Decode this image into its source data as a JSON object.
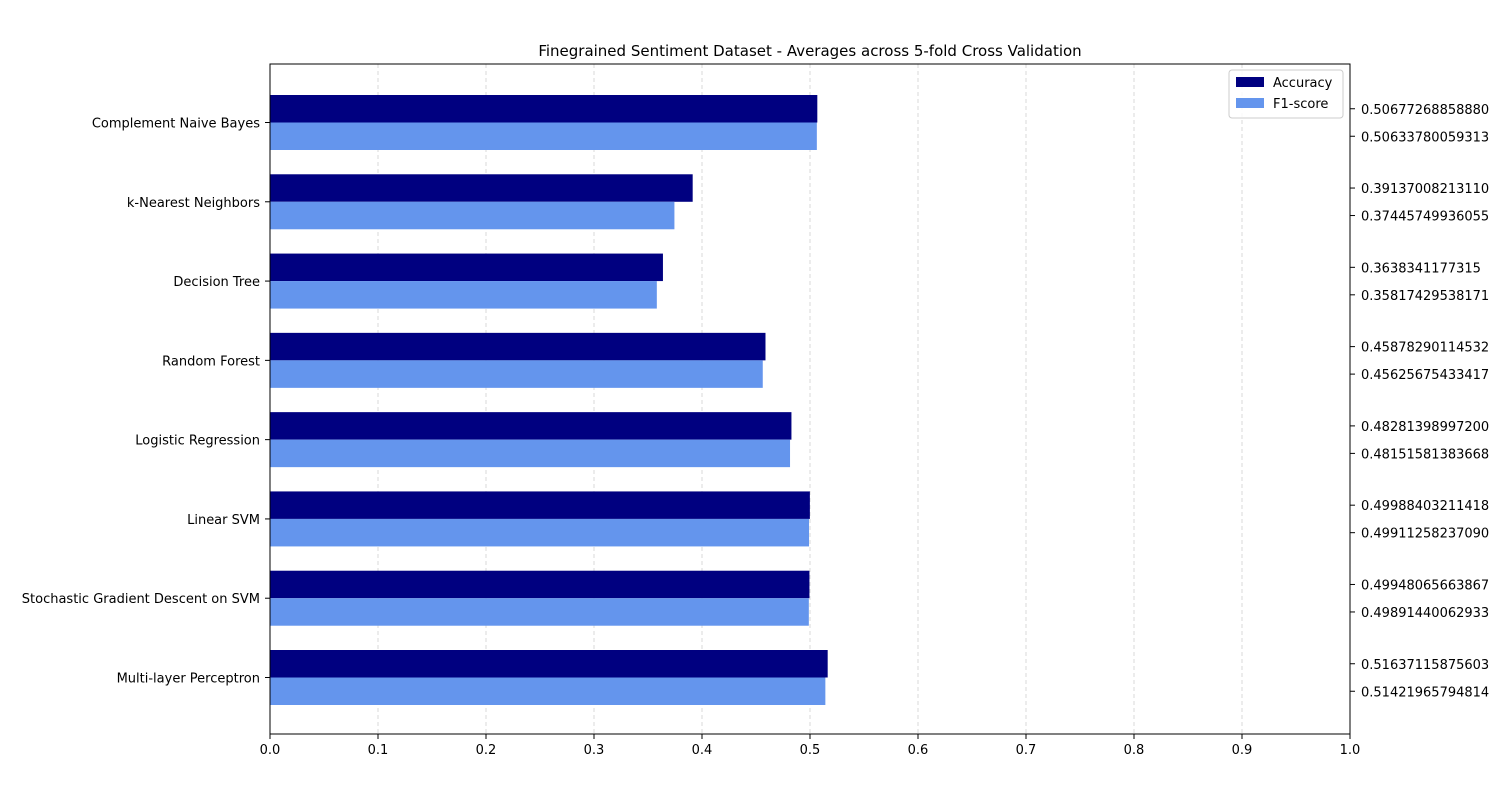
{
  "chart_data": {
    "type": "bar",
    "orientation": "horizontal",
    "title": "Finegrained Sentiment Dataset - Averages across 5-fold Cross Validation",
    "xlabel": "",
    "ylabel": "",
    "xlim": [
      0.0,
      1.0
    ],
    "xticks": [
      "0.0",
      "0.1",
      "0.2",
      "0.3",
      "0.4",
      "0.5",
      "0.6",
      "0.7",
      "0.8",
      "0.9",
      "1.0"
    ],
    "grid": "vertical dashed",
    "legend_position": "top-right",
    "categories": [
      "Complement Naive Bayes",
      "k-Nearest Neighbors",
      "Decision Tree",
      "Random Forest",
      "Logistic Regression",
      "Linear SVM",
      "Stochastic Gradient Descent on SVM",
      "Multi-layer Perceptron"
    ],
    "series": [
      {
        "name": "Accuracy",
        "color": "#000080",
        "values": [
          0.5067726885888,
          0.3913700821311,
          0.3638341177315,
          0.45878290114532,
          0.482813989972,
          0.49988403211418,
          0.49948065663867,
          0.51637115875603
        ],
        "labels": [
          "0.50677268858880",
          "0.39137008213110",
          "0.3638341177315",
          "0.45878290114532",
          "0.48281398997200",
          "0.49988403211418",
          "0.49948065663867",
          "0.51637115875603"
        ]
      },
      {
        "name": "F1-score",
        "color": "#6495ED",
        "values": [
          0.50633780059313,
          0.37445749936055,
          0.35817429538171,
          0.45625675433417,
          0.48151581383668,
          0.4991125823709,
          0.49891440062933,
          0.51421965794814
        ],
        "labels": [
          "0.50633780059313",
          "0.37445749936055",
          "0.35817429538171",
          "0.45625675433417",
          "0.48151581383668",
          "0.49911258237090",
          "0.49891440062933",
          "0.51421965794814"
        ]
      }
    ]
  }
}
